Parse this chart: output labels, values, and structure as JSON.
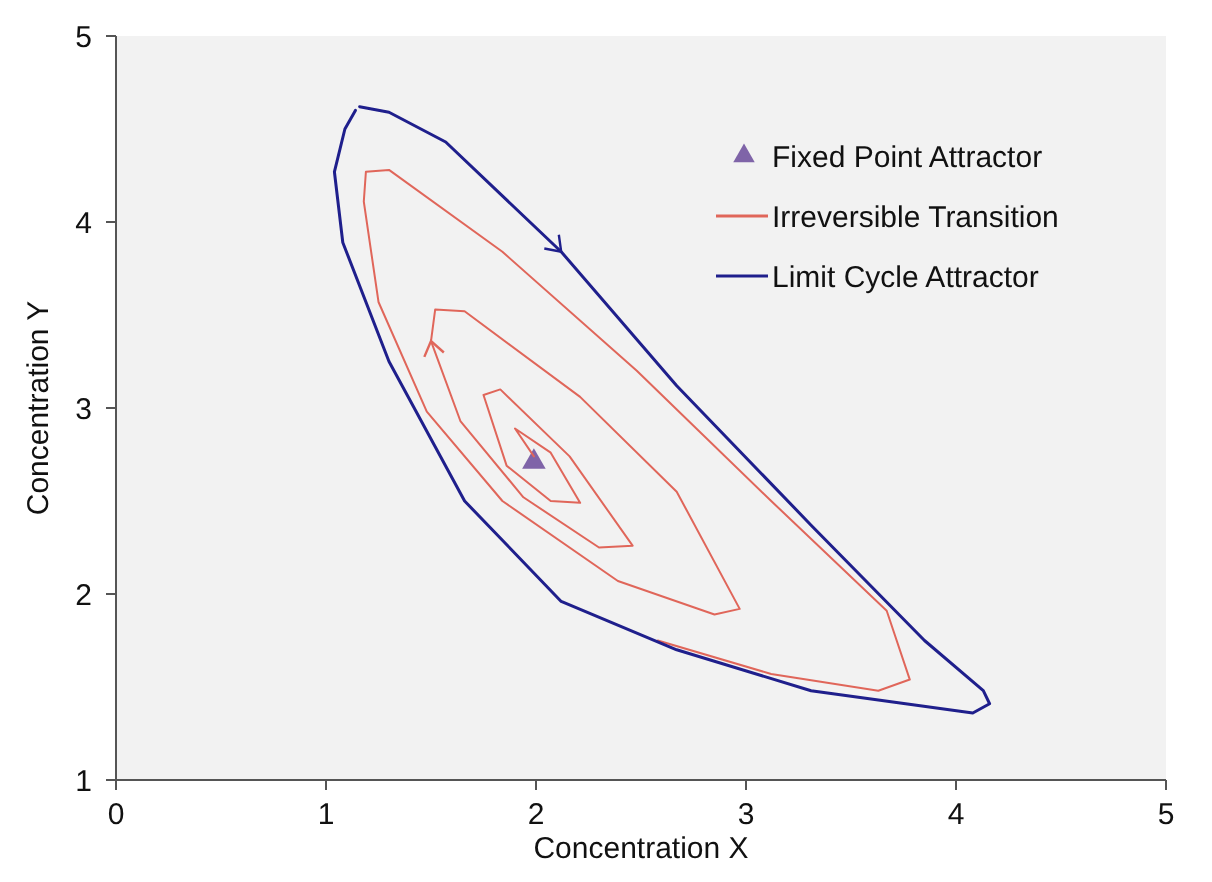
{
  "chart_data": {
    "type": "line",
    "xlabel": "Concentration X",
    "ylabel": "Concentration Y",
    "xlim": [
      0,
      5
    ],
    "ylim": [
      1,
      5
    ],
    "xticks": [
      0,
      1,
      2,
      3,
      4,
      5
    ],
    "yticks": [
      1,
      2,
      3,
      4,
      5
    ],
    "grid": false,
    "legend": "top right",
    "marker": "none",
    "line_style": "solid",
    "series": [
      {
        "name": "Fixed Point Attractor",
        "type": "scatter",
        "marker": "triangle",
        "color": "#7f64a8",
        "x": [
          1.99
        ],
        "values": [
          2.71
        ]
      },
      {
        "name": "Irreversible Transition",
        "color": "#e0665a",
        "x": [
          1.99,
          1.9,
          2.07,
          2.21,
          2.07,
          1.86,
          1.75,
          1.83,
          2.16,
          2.46,
          2.3,
          1.94,
          1.64,
          1.5,
          1.52,
          1.66,
          2.21,
          2.67,
          2.97,
          2.85,
          2.39,
          1.84,
          1.48,
          1.25,
          1.18,
          1.19,
          1.3,
          1.84,
          2.48,
          3.12,
          3.67,
          3.78,
          3.63,
          3.12,
          2.58
        ],
        "values": [
          2.74,
          2.89,
          2.76,
          2.49,
          2.5,
          2.69,
          3.07,
          3.1,
          2.74,
          2.26,
          2.25,
          2.52,
          2.93,
          3.36,
          3.53,
          3.52,
          3.06,
          2.55,
          1.92,
          1.89,
          2.07,
          2.5,
          2.98,
          3.57,
          4.11,
          4.27,
          4.28,
          3.84,
          3.2,
          2.5,
          1.91,
          1.54,
          1.48,
          1.57,
          1.75
        ]
      },
      {
        "name": "Limit Cycle Attractor",
        "color": "#1f1f8c",
        "x": [
          1.16,
          1.3,
          1.57,
          2.12,
          2.67,
          3.31,
          3.85,
          4.13,
          4.16,
          4.08,
          3.76,
          3.31,
          2.67,
          2.12,
          1.66,
          1.3,
          1.08,
          1.04,
          1.09,
          1.14
        ],
        "values": [
          4.62,
          4.59,
          4.43,
          3.84,
          3.12,
          2.37,
          1.75,
          1.48,
          1.41,
          1.36,
          1.41,
          1.48,
          1.7,
          1.96,
          2.5,
          3.25,
          3.89,
          4.27,
          4.5,
          4.6
        ]
      }
    ]
  }
}
